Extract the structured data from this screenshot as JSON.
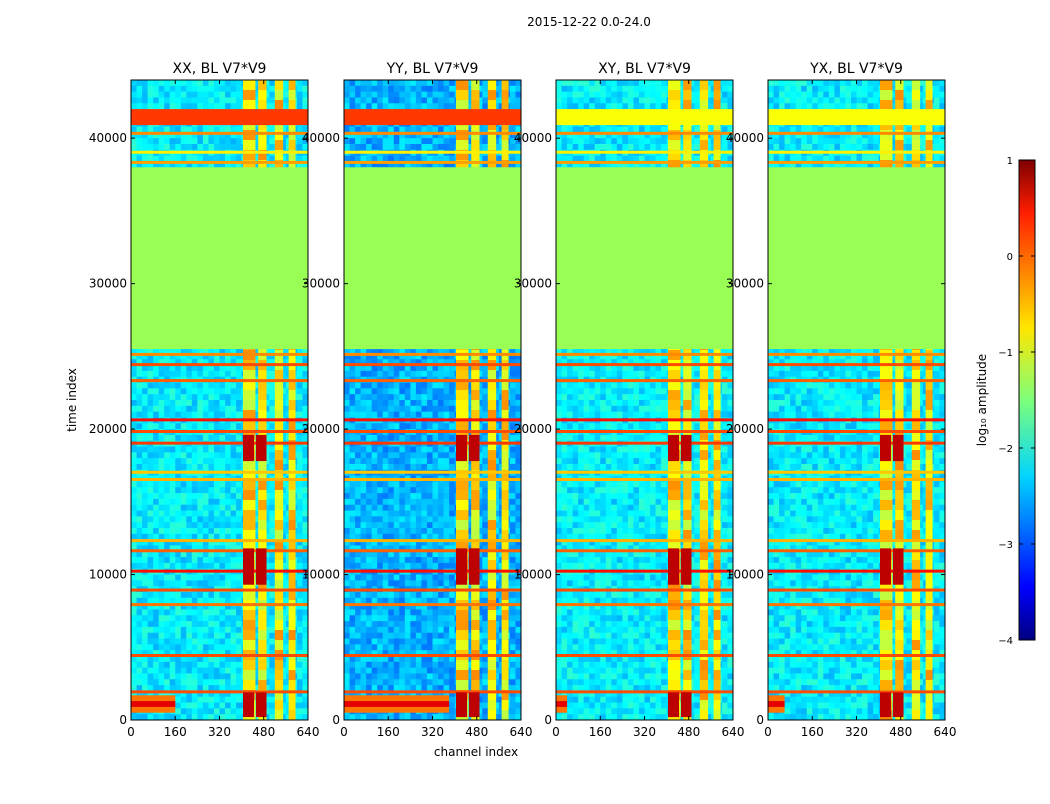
{
  "figure": {
    "suptitle": "2015-12-22 0.0-24.0",
    "ylabel": "time index",
    "xlabel": "channel index"
  },
  "chart_data": {
    "type": "heatmap",
    "title": "2015-12-22 0.0-24.0",
    "xlabel": "channel index",
    "ylabel": "time index",
    "xlim": [
      0,
      640
    ],
    "ylim": [
      0,
      44000
    ],
    "xticks": [
      0,
      160,
      320,
      480,
      640
    ],
    "yticks": [
      0,
      10000,
      20000,
      30000,
      40000
    ],
    "panels": [
      {
        "title": "XX, BL V7*V9",
        "bottom_blob_extent": 160
      },
      {
        "title": "YY, BL V7*V9",
        "bottom_blob_extent": 380
      },
      {
        "title": "XY, BL V7*V9",
        "bottom_blob_extent": 40
      },
      {
        "title": "YX, BL V7*V9",
        "bottom_blob_extent": 60
      }
    ],
    "flagged_time_range": [
      25500,
      38000
    ],
    "flagged_level": -1.3,
    "bright_channel_bands": [
      [
        405,
        450
      ],
      [
        460,
        490
      ],
      [
        520,
        550
      ],
      [
        570,
        595
      ]
    ],
    "saturated_blocks": {
      "channels": [
        [
          405,
          445
        ],
        [
          452,
          490
        ]
      ],
      "time_ranges": [
        [
          200,
          1900
        ],
        [
          9300,
          11800
        ],
        [
          17800,
          19600
        ]
      ]
    },
    "horizontal_lines": [
      {
        "time": 1900,
        "level": 0.0
      },
      {
        "time": 4400,
        "level": 0.0
      },
      {
        "time": 7900,
        "level": -0.2
      },
      {
        "time": 8900,
        "level": 0.0
      },
      {
        "time": 10200,
        "level": 0.3
      },
      {
        "time": 11600,
        "level": -0.1
      },
      {
        "time": 12300,
        "level": -0.5
      },
      {
        "time": 16500,
        "level": -0.5
      },
      {
        "time": 17000,
        "level": -0.6
      },
      {
        "time": 19000,
        "level": 0.1
      },
      {
        "time": 19800,
        "level": 0.0
      },
      {
        "time": 20600,
        "level": 0.3
      },
      {
        "time": 23300,
        "level": -0.1
      },
      {
        "time": 24400,
        "level": 0.0
      },
      {
        "time": 25100,
        "level": -0.3
      },
      {
        "time": 38300,
        "level": -0.4
      },
      {
        "time": 39000,
        "level": -0.8
      },
      {
        "time": 40300,
        "level": -0.3
      },
      {
        "time": 41500,
        "level": 0.2
      }
    ],
    "colorbar": {
      "label": "log₁₀ amplitude",
      "colormap": "jet",
      "range": [
        -4,
        1
      ],
      "ticks": [
        "1",
        "0",
        "−1",
        "−2",
        "−3",
        "−4"
      ]
    }
  },
  "colors": {
    "background": "#ffffff",
    "axis": "#000000",
    "flagged": "#99ff55"
  }
}
